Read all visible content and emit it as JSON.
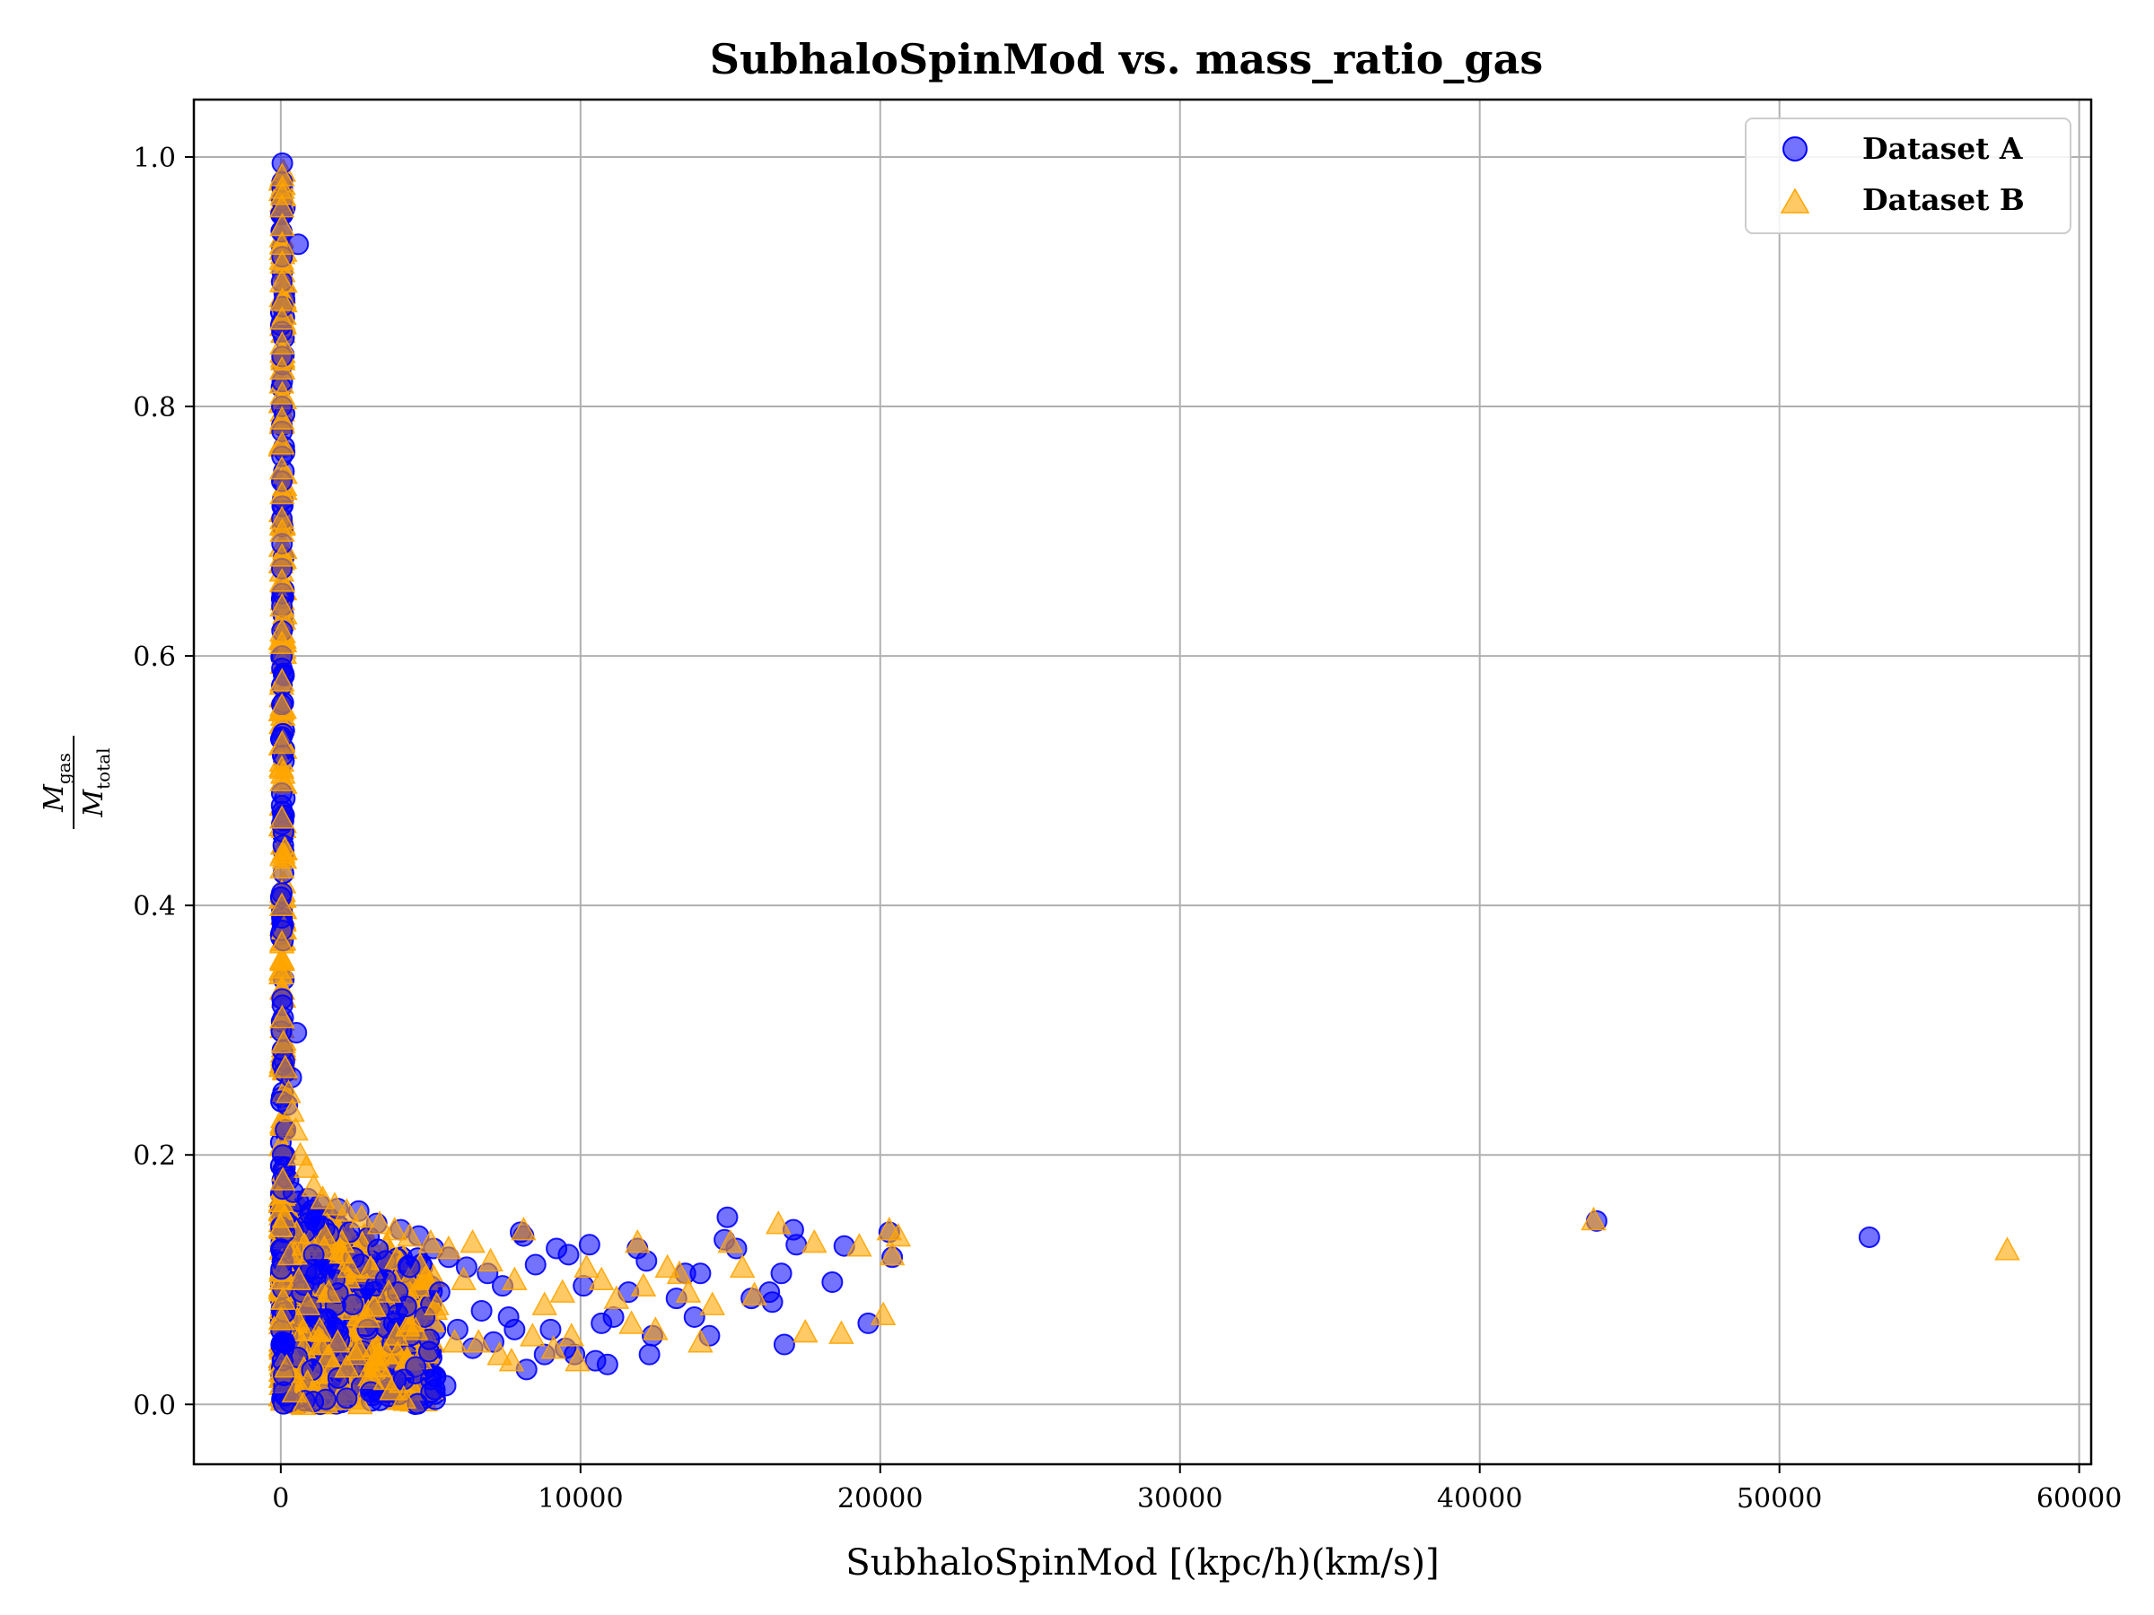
{
  "chart_data": {
    "type": "scatter",
    "title": "SubhaloSpinMod vs. mass_ratio_gas",
    "xlabel": "SubhaloSpinMod [(kpc/h)(km/s)]",
    "ylabel": {
      "numerator": "M",
      "numerator_sub": "gas",
      "denominator": "M",
      "denominator_sub": "total"
    },
    "xlim": [
      -2900,
      60400
    ],
    "ylim": [
      -0.048,
      1.046
    ],
    "x_ticks": [
      0,
      10000,
      20000,
      30000,
      40000,
      50000,
      60000
    ],
    "x_tick_labels": [
      "0",
      "10000",
      "20000",
      "30000",
      "40000",
      "50000",
      "60000"
    ],
    "y_ticks": [
      0.0,
      0.2,
      0.4,
      0.6,
      0.8,
      1.0
    ],
    "y_tick_labels": [
      "0.0",
      "0.2",
      "0.4",
      "0.6",
      "0.8",
      "1.0"
    ],
    "grid": true,
    "legend_position": "top-right",
    "series": [
      {
        "name": "Dataset A",
        "marker": "circle",
        "color": "#0000ff",
        "alpha": 0.55,
        "points": [
          [
            52,
            0.995
          ],
          [
            48,
            0.98
          ],
          [
            40,
            0.965
          ],
          [
            60,
            0.955
          ],
          [
            35,
            0.94
          ],
          [
            580,
            0.93
          ],
          [
            45,
            0.92
          ],
          [
            30,
            0.9
          ],
          [
            55,
            0.88
          ],
          [
            38,
            0.86
          ],
          [
            42,
            0.84
          ],
          [
            50,
            0.82
          ],
          [
            36,
            0.8
          ],
          [
            44,
            0.78
          ],
          [
            40,
            0.76
          ],
          [
            33,
            0.74
          ],
          [
            47,
            0.72
          ],
          [
            39,
            0.71
          ],
          [
            41,
            0.69
          ],
          [
            35,
            0.67
          ],
          [
            45,
            0.65
          ],
          [
            37,
            0.64
          ],
          [
            43,
            0.62
          ],
          [
            40,
            0.6
          ],
          [
            38,
            0.59
          ],
          [
            36,
            0.535
          ],
          [
            30,
            0.49
          ],
          [
            28,
            0.48
          ],
          [
            32,
            0.465
          ],
          [
            34,
            0.41
          ],
          [
            36,
            0.39
          ],
          [
            40,
            0.38
          ],
          [
            44,
            0.325
          ],
          [
            55,
            0.32
          ],
          [
            80,
            0.31
          ],
          [
            520,
            0.298
          ],
          [
            120,
            0.275
          ],
          [
            350,
            0.262
          ],
          [
            220,
            0.24
          ],
          [
            160,
            0.22
          ],
          [
            60,
            0.2
          ],
          [
            140,
            0.19
          ],
          [
            260,
            0.18
          ],
          [
            420,
            0.17
          ],
          [
            900,
            0.165
          ],
          [
            1300,
            0.16
          ],
          [
            1900,
            0.157
          ],
          [
            2600,
            0.155
          ],
          [
            3200,
            0.145
          ],
          [
            4000,
            0.14
          ],
          [
            4600,
            0.135
          ],
          [
            5100,
            0.125
          ],
          [
            5600,
            0.118
          ],
          [
            6200,
            0.11
          ],
          [
            6900,
            0.105
          ],
          [
            7400,
            0.095
          ],
          [
            8000,
            0.138
          ],
          [
            8100,
            0.135
          ],
          [
            8500,
            0.112
          ],
          [
            9200,
            0.125
          ],
          [
            9600,
            0.12
          ],
          [
            10100,
            0.095
          ],
          [
            10300,
            0.128
          ],
          [
            10700,
            0.065
          ],
          [
            11100,
            0.07
          ],
          [
            11600,
            0.09
          ],
          [
            11900,
            0.125
          ],
          [
            12200,
            0.115
          ],
          [
            12400,
            0.055
          ],
          [
            12300,
            0.04
          ],
          [
            13200,
            0.085
          ],
          [
            13500,
            0.105
          ],
          [
            13800,
            0.07
          ],
          [
            14000,
            0.105
          ],
          [
            14300,
            0.055
          ],
          [
            14900,
            0.15
          ],
          [
            14800,
            0.132
          ],
          [
            15200,
            0.125
          ],
          [
            15700,
            0.085
          ],
          [
            16300,
            0.09
          ],
          [
            16400,
            0.082
          ],
          [
            16700,
            0.105
          ],
          [
            16800,
            0.048
          ],
          [
            17100,
            0.14
          ],
          [
            17200,
            0.128
          ],
          [
            18400,
            0.098
          ],
          [
            18800,
            0.127
          ],
          [
            19600,
            0.065
          ],
          [
            20300,
            0.138
          ],
          [
            20400,
            0.118
          ],
          [
            7800,
            0.06
          ],
          [
            8200,
            0.028
          ],
          [
            8800,
            0.04
          ],
          [
            9000,
            0.06
          ],
          [
            9500,
            0.045
          ],
          [
            9800,
            0.04
          ],
          [
            10500,
            0.035
          ],
          [
            10900,
            0.032
          ],
          [
            5500,
            0.015
          ],
          [
            5000,
            0.02
          ],
          [
            4500,
            0.03
          ],
          [
            4100,
            0.02
          ],
          [
            3000,
            0.01
          ],
          [
            2200,
            0.005
          ],
          [
            1500,
            0.004
          ],
          [
            800,
            0.003
          ],
          [
            300,
            0.002
          ],
          [
            100,
            0.01
          ],
          [
            50,
            0.05
          ],
          [
            700,
            0.09
          ],
          [
            1100,
            0.12
          ],
          [
            1800,
            0.1
          ],
          [
            2400,
            0.08
          ],
          [
            2900,
            0.06
          ],
          [
            3500,
            0.1
          ],
          [
            3900,
            0.09
          ],
          [
            4300,
            0.11
          ],
          [
            4800,
            0.07
          ],
          [
            5300,
            0.09
          ],
          [
            5900,
            0.06
          ],
          [
            6400,
            0.045
          ],
          [
            6700,
            0.075
          ],
          [
            7100,
            0.05
          ],
          [
            7600,
            0.07
          ],
          [
            43900,
            0.147
          ],
          [
            53000,
            0.134
          ]
        ]
      },
      {
        "name": "Dataset B",
        "marker": "triangle",
        "color": "#ffa500",
        "alpha": 0.6,
        "points": [
          [
            45,
            0.985
          ],
          [
            55,
            0.975
          ],
          [
            60,
            0.97
          ],
          [
            40,
            0.96
          ],
          [
            50,
            0.945
          ],
          [
            42,
            0.93
          ],
          [
            48,
            0.915
          ],
          [
            38,
            0.9
          ],
          [
            52,
            0.885
          ],
          [
            44,
            0.87
          ],
          [
            46,
            0.85
          ],
          [
            40,
            0.83
          ],
          [
            50,
            0.81
          ],
          [
            42,
            0.79
          ],
          [
            48,
            0.77
          ],
          [
            36,
            0.75
          ],
          [
            44,
            0.73
          ],
          [
            40,
            0.71
          ],
          [
            46,
            0.7
          ],
          [
            42,
            0.68
          ],
          [
            38,
            0.66
          ],
          [
            44,
            0.64
          ],
          [
            40,
            0.62
          ],
          [
            36,
            0.61
          ],
          [
            42,
            0.58
          ],
          [
            38,
            0.56
          ],
          [
            40,
            0.53
          ],
          [
            36,
            0.51
          ],
          [
            44,
            0.5
          ],
          [
            38,
            0.47
          ],
          [
            40,
            0.44
          ],
          [
            42,
            0.43
          ],
          [
            36,
            0.4
          ],
          [
            38,
            0.37
          ],
          [
            40,
            0.35
          ],
          [
            44,
            0.31
          ],
          [
            90,
            0.29
          ],
          [
            150,
            0.27
          ],
          [
            260,
            0.25
          ],
          [
            380,
            0.235
          ],
          [
            500,
            0.22
          ],
          [
            650,
            0.2
          ],
          [
            850,
            0.19
          ],
          [
            1100,
            0.175
          ],
          [
            1400,
            0.165
          ],
          [
            1800,
            0.16
          ],
          [
            2200,
            0.155
          ],
          [
            2700,
            0.15
          ],
          [
            3300,
            0.145
          ],
          [
            3800,
            0.14
          ],
          [
            4300,
            0.135
          ],
          [
            5000,
            0.13
          ],
          [
            5600,
            0.125
          ],
          [
            6400,
            0.13
          ],
          [
            7000,
            0.115
          ],
          [
            7800,
            0.1
          ],
          [
            8100,
            0.14
          ],
          [
            8800,
            0.08
          ],
          [
            9400,
            0.09
          ],
          [
            9900,
            0.035
          ],
          [
            10200,
            0.11
          ],
          [
            10700,
            0.1
          ],
          [
            11200,
            0.085
          ],
          [
            11700,
            0.065
          ],
          [
            11900,
            0.13
          ],
          [
            12100,
            0.095
          ],
          [
            12500,
            0.06
          ],
          [
            12900,
            0.11
          ],
          [
            13300,
            0.105
          ],
          [
            13600,
            0.09
          ],
          [
            14000,
            0.05
          ],
          [
            14400,
            0.08
          ],
          [
            15000,
            0.13
          ],
          [
            15400,
            0.11
          ],
          [
            15800,
            0.088
          ],
          [
            16600,
            0.145
          ],
          [
            17500,
            0.058
          ],
          [
            17800,
            0.13
          ],
          [
            18700,
            0.057
          ],
          [
            19300,
            0.127
          ],
          [
            20100,
            0.072
          ],
          [
            20300,
            0.14
          ],
          [
            20600,
            0.135
          ],
          [
            20400,
            0.12
          ],
          [
            6600,
            0.05
          ],
          [
            7300,
            0.04
          ],
          [
            7700,
            0.035
          ],
          [
            8400,
            0.055
          ],
          [
            9100,
            0.045
          ],
          [
            9700,
            0.055
          ],
          [
            4100,
            0.005
          ],
          [
            3500,
            0.02
          ],
          [
            3000,
            0.03
          ],
          [
            2500,
            0.04
          ],
          [
            1900,
            0.05
          ],
          [
            1300,
            0.06
          ],
          [
            900,
            0.08
          ],
          [
            600,
            0.1
          ],
          [
            300,
            0.12
          ],
          [
            120,
            0.15
          ],
          [
            70,
            0.18
          ],
          [
            200,
            0.03
          ],
          [
            450,
            0.01
          ],
          [
            750,
            0.0
          ],
          [
            1600,
            0.09
          ],
          [
            2300,
            0.11
          ],
          [
            2900,
            0.07
          ],
          [
            3600,
            0.09
          ],
          [
            4500,
            0.06
          ],
          [
            5200,
            0.08
          ],
          [
            5800,
            0.05
          ],
          [
            6100,
            0.1
          ],
          [
            43800,
            0.148
          ],
          [
            57600,
            0.124
          ]
        ]
      }
    ]
  }
}
